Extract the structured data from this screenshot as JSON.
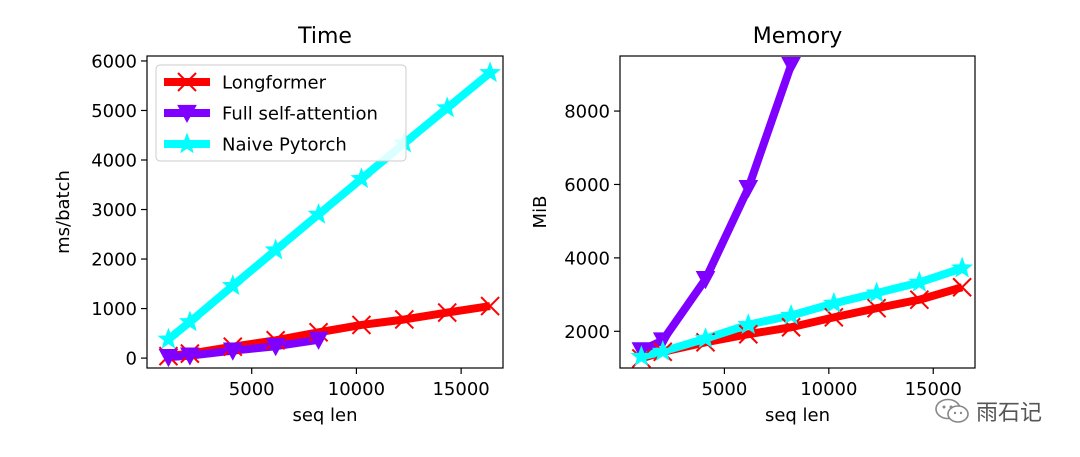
{
  "chart_data": [
    {
      "type": "line",
      "title": "Time",
      "xlabel": "seq len",
      "ylabel": "ms/batch",
      "xlim": [
        0,
        17000
      ],
      "ylim": [
        -200,
        6100
      ],
      "xticks": [
        5000,
        10000,
        15000
      ],
      "xtick_labels": [
        "5000",
        "10000",
        "15000"
      ],
      "yticks": [
        0,
        1000,
        2000,
        3000,
        4000,
        5000,
        6000
      ],
      "ytick_labels": [
        "0",
        "1000",
        "2000",
        "3000",
        "4000",
        "5000",
        "6000"
      ],
      "grid": false,
      "legend": "top-left",
      "series": [
        {
          "name": "Longformer",
          "color": "#ff0000",
          "marker": "x",
          "x": [
            1024,
            2048,
            4096,
            6144,
            8192,
            10240,
            12288,
            14336,
            16384
          ],
          "y": [
            40,
            90,
            230,
            360,
            520,
            670,
            780,
            920,
            1050
          ]
        },
        {
          "name": "Full self-attention",
          "color": "#7f00ff",
          "marker": "triangle-down",
          "x": [
            1024,
            2048,
            4096,
            6144,
            8192
          ],
          "y": [
            20,
            50,
            150,
            240,
            370
          ]
        },
        {
          "name": "Naive Pytorch",
          "color": "#00ffff",
          "marker": "star",
          "x": [
            1024,
            2048,
            4096,
            6144,
            8192,
            10240,
            12288,
            14336,
            16384
          ],
          "y": [
            380,
            730,
            1460,
            2180,
            2900,
            3620,
            4340,
            5050,
            5760
          ]
        }
      ]
    },
    {
      "type": "line",
      "title": "Memory",
      "xlabel": "seq len",
      "ylabel": "MiB",
      "xlim": [
        0,
        17000
      ],
      "ylim": [
        1000,
        9500
      ],
      "xticks": [
        5000,
        10000,
        15000
      ],
      "xtick_labels": [
        "5000",
        "10000",
        "15000"
      ],
      "yticks": [
        2000,
        4000,
        6000,
        8000
      ],
      "ytick_labels": [
        "2000",
        "4000",
        "6000",
        "8000"
      ],
      "grid": false,
      "series": [
        {
          "name": "Longformer",
          "color": "#ff0000",
          "marker": "x",
          "x": [
            1024,
            2048,
            4096,
            6144,
            8192,
            10240,
            12288,
            14336,
            16384
          ],
          "y": [
            1260,
            1440,
            1700,
            1920,
            2110,
            2380,
            2630,
            2860,
            3200
          ]
        },
        {
          "name": "Full self-attention",
          "color": "#7f00ff",
          "marker": "triangle-down",
          "x": [
            1024,
            2048,
            4096,
            6144,
            8192
          ],
          "y": [
            1480,
            1750,
            3420,
            5900,
            9250
          ]
        },
        {
          "name": "Naive Pytorch",
          "color": "#00ffff",
          "marker": "star",
          "x": [
            1024,
            2048,
            4096,
            6144,
            8192,
            10240,
            12288,
            14336,
            16384
          ],
          "y": [
            1310,
            1450,
            1800,
            2180,
            2430,
            2760,
            3040,
            3330,
            3720
          ]
        }
      ]
    }
  ],
  "watermark": {
    "text": "雨石记",
    "icon": "wechat-icon"
  }
}
